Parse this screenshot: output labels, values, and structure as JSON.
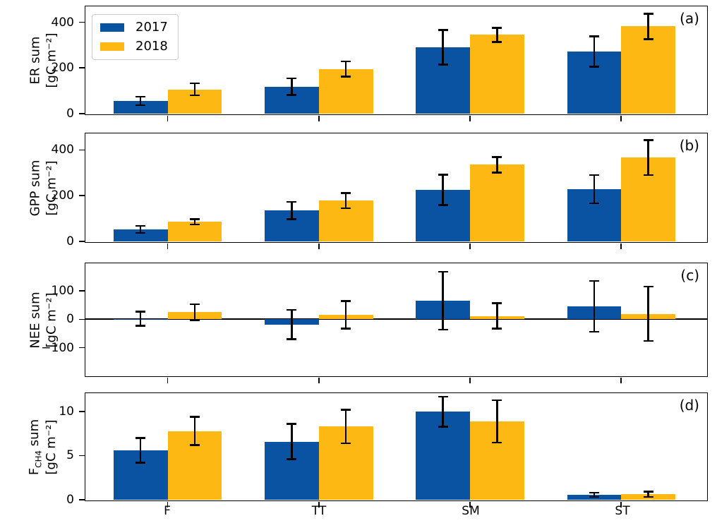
{
  "figure": {
    "background": "#ffffff",
    "colors": {
      "2017": "#0a53a3",
      "2018": "#fdb813",
      "axis": "#000000"
    },
    "legend": {
      "items": [
        {
          "label": "2017",
          "series": "2017"
        },
        {
          "label": "2018",
          "series": "2018"
        }
      ]
    }
  },
  "chart_data": [
    {
      "type": "bar",
      "panel_label": "(a)",
      "ylabel": {
        "lines": [
          [
            {
              "text": "ER sum"
            }
          ],
          [
            {
              "text": "[gC m⁻²]"
            }
          ]
        ]
      },
      "ylim": [
        0,
        470
      ],
      "yticks": [
        0,
        200,
        400
      ],
      "zero_line": false,
      "categories": [
        "F",
        "TT",
        "SM",
        "ST"
      ],
      "series": [
        {
          "name": "2017",
          "values": [
            55,
            118,
            290,
            272
          ],
          "errors": [
            18,
            37,
            76,
            67
          ]
        },
        {
          "name": "2018",
          "values": [
            106,
            195,
            345,
            382
          ],
          "errors": [
            26,
            33,
            31,
            56
          ]
        }
      ]
    },
    {
      "type": "bar",
      "panel_label": "(b)",
      "ylabel": {
        "lines": [
          [
            {
              "text": "GPP sum"
            }
          ],
          [
            {
              "text": "[gC m⁻²]"
            }
          ]
        ]
      },
      "ylim": [
        0,
        472
      ],
      "yticks": [
        0,
        200,
        400
      ],
      "zero_line": false,
      "categories": [
        "F",
        "TT",
        "SM",
        "ST"
      ],
      "series": [
        {
          "name": "2017",
          "values": [
            52,
            135,
            225,
            228
          ],
          "errors": [
            16,
            38,
            66,
            61
          ]
        },
        {
          "name": "2018",
          "values": [
            85,
            178,
            335,
            366
          ],
          "errors": [
            12,
            33,
            34,
            77
          ]
        }
      ]
    },
    {
      "type": "bar",
      "panel_label": "(c)",
      "ylabel": {
        "lines": [
          [
            {
              "text": "NEE sum"
            }
          ],
          [
            {
              "text": "[gC m⁻²]"
            }
          ]
        ]
      },
      "ylim": [
        -198,
        198
      ],
      "yticks": [
        -100,
        0,
        100
      ],
      "zero_line": true,
      "categories": [
        "F",
        "TT",
        "SM",
        "ST"
      ],
      "series": [
        {
          "name": "2017",
          "values": [
            2,
            -18,
            66,
            46
          ],
          "errors": [
            25,
            52,
            102,
            90
          ]
        },
        {
          "name": "2018",
          "values": [
            25,
            16,
            12,
            19
          ],
          "errors": [
            28,
            49,
            45,
            96
          ]
        }
      ]
    },
    {
      "type": "bar",
      "panel_label": "(d)",
      "ylabel": {
        "lines": [
          [
            {
              "text": "F"
            },
            {
              "text": "CH4",
              "sub": true
            },
            {
              "text": " sum"
            }
          ],
          [
            {
              "text": "[gC m⁻²]"
            }
          ]
        ]
      },
      "ylim": [
        0,
        12.1
      ],
      "yticks": [
        0,
        5,
        10
      ],
      "zero_line": false,
      "categories": [
        "F",
        "TT",
        "SM",
        "ST"
      ],
      "series": [
        {
          "name": "2017",
          "values": [
            5.6,
            6.6,
            10.0,
            0.55
          ],
          "errors": [
            1.4,
            2.0,
            1.7,
            0.25
          ]
        },
        {
          "name": "2018",
          "values": [
            7.8,
            8.3,
            8.9,
            0.6
          ],
          "errors": [
            1.6,
            1.9,
            2.4,
            0.3
          ]
        }
      ]
    }
  ]
}
